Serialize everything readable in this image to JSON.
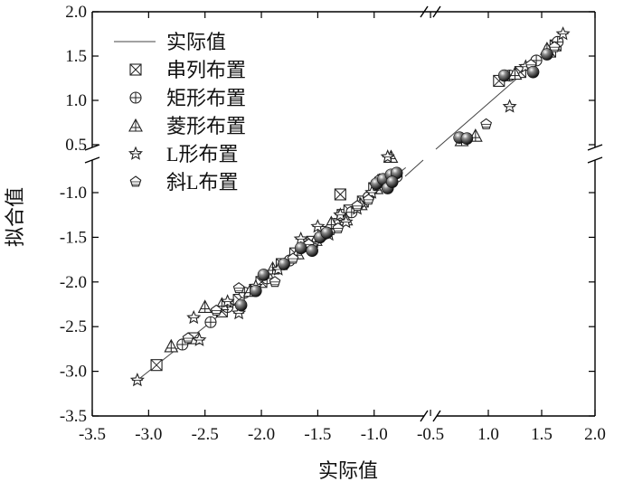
{
  "chart_data": {
    "type": "scatter",
    "xlabel": "实际值",
    "ylabel": "拟合值",
    "x_axis": {
      "ticks": [
        -3.5,
        -3.0,
        -2.5,
        -2.0,
        -1.5,
        -1.0,
        -0.5,
        1.0,
        1.5,
        2.0
      ],
      "tick_labels": [
        "-3.5",
        "-3.0",
        "-2.5",
        "-2.0",
        "-1.5",
        "-1.0",
        "-0.5",
        "1.0",
        "1.5",
        "2.0"
      ],
      "break": [
        -0.5,
        0.5
      ]
    },
    "y_axis": {
      "ticks": [
        -3.5,
        -3.0,
        -2.5,
        -2.0,
        -1.5,
        -1.0,
        0.5,
        1.0,
        1.5,
        2.0
      ],
      "tick_labels": [
        "-3.5",
        "-3.0",
        "-2.5",
        "-2.0",
        "-1.5",
        "-1.0",
        "0.5",
        "1.0",
        "1.5",
        "2.0"
      ],
      "break": [
        -0.5,
        0.5
      ]
    },
    "legend": {
      "position": "top-left",
      "items": [
        {
          "label": "实际值",
          "marker": "line"
        },
        {
          "label": "串列布置",
          "marker": "box-x"
        },
        {
          "label": "矩形布置",
          "marker": "circle-plus"
        },
        {
          "label": "菱形布置",
          "marker": "triangle"
        },
        {
          "label": "L形布置",
          "marker": "star"
        },
        {
          "label": "斜L布置",
          "marker": "pentagon"
        }
      ]
    },
    "reference_line": {
      "from": [
        -3.1,
        -3.1
      ],
      "to": [
        1.7,
        1.7
      ]
    },
    "series": [
      {
        "name": "串列布置",
        "marker": "box-x",
        "points": [
          [
            -2.93,
            -2.93
          ],
          [
            -2.6,
            -2.63
          ],
          [
            -2.35,
            -2.33
          ],
          [
            -2.2,
            -2.2
          ],
          [
            -2.0,
            -2.0
          ],
          [
            -1.82,
            -1.8
          ],
          [
            -1.7,
            -1.68
          ],
          [
            -1.55,
            -1.55
          ],
          [
            -1.45,
            -1.44
          ],
          [
            -1.3,
            -1.02
          ],
          [
            -1.28,
            -1.25
          ],
          [
            -1.22,
            -1.2
          ],
          [
            -1.1,
            -1.1
          ],
          [
            -1.0,
            -0.95
          ],
          [
            -0.92,
            -0.86
          ],
          [
            1.1,
            1.22
          ],
          [
            1.3,
            1.32
          ],
          [
            1.58,
            1.55
          ],
          [
            1.63,
            1.62
          ]
        ]
      },
      {
        "name": "矩形布置",
        "marker": "circle-plus",
        "points": [
          [
            -2.7,
            -2.7
          ],
          [
            -2.45,
            -2.45
          ],
          [
            -2.3,
            -2.28
          ],
          [
            -2.15,
            -2.12
          ],
          [
            -1.95,
            -1.96
          ],
          [
            -1.75,
            -1.76
          ],
          [
            -1.6,
            -1.6
          ],
          [
            -1.48,
            -1.5
          ],
          [
            -1.35,
            -1.35
          ],
          [
            -1.2,
            -1.22
          ],
          [
            -1.05,
            -1.05
          ],
          [
            -0.9,
            -0.9
          ],
          [
            -0.8,
            -0.82
          ],
          [
            1.2,
            1.28
          ],
          [
            1.45,
            1.45
          ],
          [
            1.65,
            1.66
          ]
        ]
      },
      {
        "name": "菱形布置",
        "marker": "triangle",
        "points": [
          [
            -2.8,
            -2.72
          ],
          [
            -2.5,
            -2.28
          ],
          [
            -2.35,
            -2.25
          ],
          [
            -2.1,
            -2.1
          ],
          [
            -1.9,
            -1.85
          ],
          [
            -1.68,
            -1.68
          ],
          [
            -1.52,
            -1.53
          ],
          [
            -1.38,
            -1.34
          ],
          [
            -1.25,
            -1.3
          ],
          [
            -1.12,
            -1.13
          ],
          [
            -0.98,
            -0.95
          ],
          [
            -0.85,
            -0.6
          ],
          [
            0.75,
            0.55
          ],
          [
            0.88,
            0.6
          ],
          [
            1.25,
            1.3
          ],
          [
            1.55,
            1.58
          ]
        ]
      },
      {
        "name": "L形布置",
        "marker": "star",
        "points": [
          [
            -3.1,
            -3.1
          ],
          [
            -2.6,
            -2.4
          ],
          [
            -2.55,
            -2.65
          ],
          [
            -2.3,
            -2.22
          ],
          [
            -2.2,
            -2.35
          ],
          [
            -2.05,
            -2.05
          ],
          [
            -1.85,
            -1.86
          ],
          [
            -1.65,
            -1.52
          ],
          [
            -1.55,
            -1.6
          ],
          [
            -1.5,
            -1.38
          ],
          [
            -1.4,
            -1.47
          ],
          [
            -1.3,
            -1.25
          ],
          [
            -1.25,
            -1.33
          ],
          [
            -1.15,
            -1.18
          ],
          [
            -1.02,
            -1.0
          ],
          [
            -0.88,
            -0.6
          ],
          [
            1.2,
            0.93
          ],
          [
            1.35,
            1.38
          ],
          [
            1.7,
            1.75
          ]
        ]
      },
      {
        "name": "斜L布置",
        "marker": "pentagon",
        "points": [
          [
            -2.65,
            -2.63
          ],
          [
            -2.4,
            -2.32
          ],
          [
            -2.2,
            -2.07
          ],
          [
            -1.88,
            -2.0
          ],
          [
            -1.72,
            -1.74
          ],
          [
            -1.58,
            -1.58
          ],
          [
            -1.32,
            -1.4
          ],
          [
            -1.15,
            -1.15
          ],
          [
            -1.05,
            -1.08
          ],
          [
            -0.95,
            -0.85
          ],
          [
            0.98,
            0.73
          ],
          [
            1.4,
            1.4
          ],
          [
            1.62,
            1.6
          ]
        ]
      },
      {
        "name": "",
        "marker": "sphere",
        "points": [
          [
            -2.18,
            -2.26
          ],
          [
            -2.05,
            -2.1
          ],
          [
            -1.98,
            -1.92
          ],
          [
            -1.8,
            -1.8
          ],
          [
            -1.65,
            -1.62
          ],
          [
            -1.55,
            -1.65
          ],
          [
            -1.48,
            -1.5
          ],
          [
            -1.42,
            -1.45
          ],
          [
            -0.98,
            -0.9
          ],
          [
            -0.92,
            -0.85
          ],
          [
            -0.88,
            -0.95
          ],
          [
            -0.85,
            -0.8
          ],
          [
            -0.8,
            -0.78
          ],
          [
            -0.84,
            -0.88
          ],
          [
            0.73,
            0.58
          ],
          [
            0.8,
            0.57
          ],
          [
            1.15,
            1.28
          ],
          [
            1.42,
            1.32
          ],
          [
            1.55,
            1.52
          ]
        ]
      }
    ]
  }
}
